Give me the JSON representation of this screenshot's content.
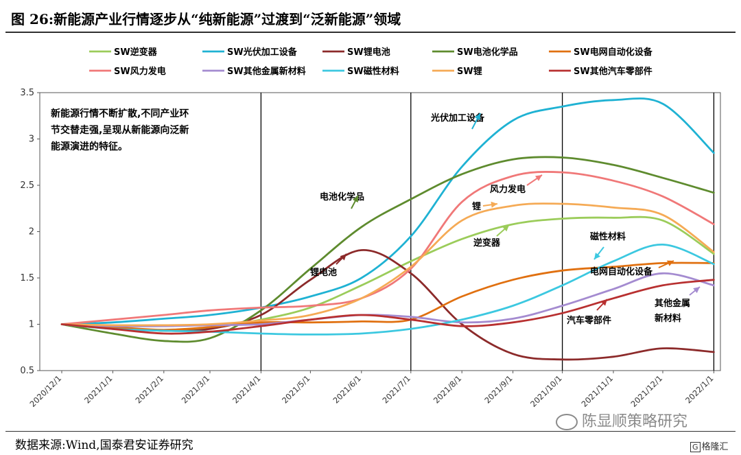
{
  "figure": {
    "title": "图 26:新能源产业行情逐步从“纯新能源”过渡到“泛新能源”领域",
    "source": "数据来源:Wind,国泰君安证券研究",
    "watermark": "陈显顺策略研究",
    "logo": "格隆汇",
    "logo_icon": "G"
  },
  "chart_data": {
    "type": "line",
    "ylim": [
      0.5,
      3.5
    ],
    "yticks": [
      "0.5",
      "1",
      "1.5",
      "2",
      "2.5",
      "3",
      "3.5"
    ],
    "x_dates": [
      "2020/12/1",
      "2021/1/1",
      "2021/2/1",
      "2021/3/1",
      "2021/4/1",
      "2021/5/1",
      "2021/6/1",
      "2021/7/1",
      "2021/8/1",
      "2021/9/1",
      "2021/10/1",
      "2021/11/1",
      "2021/12/1",
      "2022/1/1"
    ],
    "xlabels": [
      "2020/12/1",
      "2021/1/1",
      "2021/2/1",
      "2021/3/1",
      "2021/4/1",
      "2021/5/1",
      "2021/6/1",
      "2021/7/1",
      "2021/8/1",
      "2021/9/1",
      "2021/10/1",
      "2021/11/1",
      "2021/12/1",
      "2022/1/1"
    ],
    "xlim": [
      "2020/12/1",
      "2022/1/5"
    ],
    "vlines": [
      "2021/4/1",
      "2021/7/1",
      "2021/10/1",
      "2022/1/1"
    ],
    "note": [
      "新能源行情不断扩散,不同产业环",
      "节交替走强,呈现从新能源向泛新",
      "能源演进的特征。"
    ],
    "series": [
      {
        "name": "SW逆变器",
        "color": "#9bcc5a",
        "values": [
          1.0,
          0.96,
          0.93,
          0.96,
          1.05,
          1.18,
          1.42,
          1.68,
          1.92,
          2.08,
          2.14,
          2.15,
          2.12,
          1.76
        ]
      },
      {
        "name": "SW光伏加工设备",
        "color": "#1fb2d3",
        "values": [
          1.0,
          1.02,
          1.06,
          1.1,
          1.18,
          1.3,
          1.5,
          1.95,
          2.7,
          3.2,
          3.35,
          3.42,
          3.38,
          2.85
        ]
      },
      {
        "name": "SW锂电池",
        "color": "#8c2a2a",
        "values": [
          1.0,
          0.97,
          0.93,
          0.95,
          1.1,
          1.48,
          1.8,
          1.55,
          1.0,
          0.68,
          0.62,
          0.65,
          0.74,
          0.7
        ]
      },
      {
        "name": "SW电池化学品",
        "color": "#5e8b2e",
        "values": [
          1.0,
          0.9,
          0.82,
          0.85,
          1.15,
          1.6,
          2.05,
          2.35,
          2.62,
          2.78,
          2.8,
          2.72,
          2.58,
          2.42
        ]
      },
      {
        "name": "SW电网自动化设备",
        "color": "#e07010",
        "values": [
          1.0,
          0.97,
          0.94,
          0.97,
          1.02,
          1.02,
          1.03,
          1.05,
          1.3,
          1.48,
          1.58,
          1.62,
          1.66,
          1.66
        ]
      },
      {
        "name": "SW风力发电",
        "color": "#f07878",
        "values": [
          1.0,
          1.05,
          1.1,
          1.15,
          1.18,
          1.2,
          1.28,
          1.6,
          2.32,
          2.6,
          2.64,
          2.55,
          2.38,
          2.08
        ]
      },
      {
        "name": "SW其他金属新材料",
        "color": "#a48bd0",
        "values": [
          1.0,
          0.98,
          0.98,
          0.99,
          1.0,
          1.05,
          1.1,
          1.08,
          1.02,
          1.06,
          1.2,
          1.38,
          1.55,
          1.42
        ]
      },
      {
        "name": "SW磁性材料",
        "color": "#3cc8e0",
        "values": [
          1.0,
          0.95,
          0.93,
          0.92,
          0.9,
          0.89,
          0.9,
          0.95,
          1.05,
          1.2,
          1.42,
          1.68,
          1.86,
          1.65
        ]
      },
      {
        "name": "SW锂",
        "color": "#f5aa55",
        "values": [
          1.0,
          0.99,
          0.99,
          1.0,
          1.04,
          1.1,
          1.28,
          1.62,
          2.12,
          2.28,
          2.3,
          2.26,
          2.18,
          1.78
        ]
      },
      {
        "name": "SW其他汽车零部件",
        "color": "#b83030",
        "values": [
          1.0,
          0.95,
          0.9,
          0.92,
          0.98,
          1.05,
          1.1,
          1.05,
          0.98,
          1.02,
          1.12,
          1.28,
          1.42,
          1.48
        ]
      }
    ],
    "annotations": [
      {
        "text": "光伏加工设备",
        "series": "SW光伏加工设备",
        "lines": [
          "光伏加工设备"
        ]
      },
      {
        "text": "电池化学品",
        "series": "SW电池化学品",
        "lines": [
          "电池化学品"
        ]
      },
      {
        "text": "风力发电",
        "series": "SW风力发电",
        "lines": [
          "风力发电"
        ]
      },
      {
        "text": "锂",
        "series": "SW锂",
        "lines": [
          "锂"
        ]
      },
      {
        "text": "逆变器",
        "series": "SW逆变器",
        "lines": [
          "逆变器"
        ]
      },
      {
        "text": "磁性材料",
        "series": "SW磁性材料",
        "lines": [
          "磁性材料"
        ]
      },
      {
        "text": "锂电池",
        "series": "SW锂电池",
        "lines": [
          "锂电池"
        ]
      },
      {
        "text": "电网自动化设备",
        "series": "SW电网自动化设备",
        "lines": [
          "电网自动化设备"
        ]
      },
      {
        "text": "汽车零部件",
        "series": "SW其他汽车零部件",
        "lines": [
          "汽车零部件"
        ]
      },
      {
        "text": "其他金属 新材料",
        "series": "SW其他金属新材料",
        "lines": [
          "其他金属",
          "新材料"
        ]
      }
    ]
  }
}
